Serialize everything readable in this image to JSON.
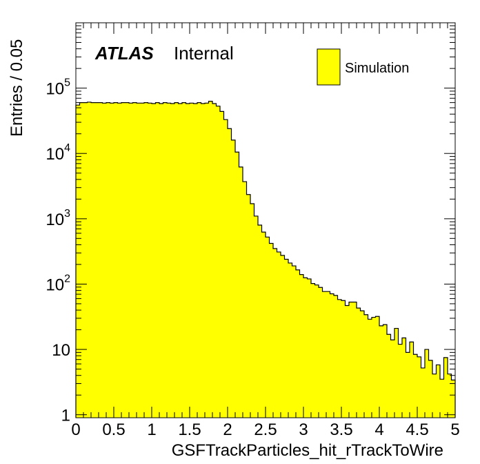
{
  "chart_data": {
    "type": "histogram",
    "title": "",
    "xlabel": "GSFTrackParticles_hit_rTrackToWire",
    "ylabel": "Entries / 0.05",
    "xlim": [
      0,
      5
    ],
    "ylim": [
      0.9,
      1000000
    ],
    "yscale": "log",
    "bin_width": 0.05,
    "fill_color": "#ffff00",
    "line_color": "#000000",
    "x_ticks": [
      "0",
      "0.5",
      "1",
      "1.5",
      "2",
      "2.5",
      "3",
      "3.5",
      "4",
      "4.5",
      "5"
    ],
    "y_ticks": [
      {
        "value": 1,
        "base": "1",
        "exp": ""
      },
      {
        "value": 10,
        "base": "10",
        "exp": ""
      },
      {
        "value": 100,
        "base": "10",
        "exp": "2"
      },
      {
        "value": 1000,
        "base": "10",
        "exp": "3"
      },
      {
        "value": 10000,
        "base": "10",
        "exp": "4"
      },
      {
        "value": 100000,
        "base": "10",
        "exp": "5"
      }
    ],
    "legend": {
      "entries": [
        "Simulation"
      ],
      "position": "top-right"
    },
    "annotations": {
      "experiment": "ATLAS",
      "status": "Internal"
    },
    "series": [
      {
        "values": [
          55000,
          60000,
          60000,
          61000,
          60000,
          60000,
          60000,
          59000,
          60000,
          59000,
          60000,
          59000,
          60000,
          60000,
          59000,
          60000,
          59000,
          59000,
          60000,
          59000,
          58000,
          60000,
          58000,
          60000,
          59000,
          58000,
          60000,
          58000,
          60000,
          58000,
          59000,
          58000,
          60000,
          58000,
          59000,
          63000,
          58000,
          53000,
          44000,
          33000,
          24000,
          16000,
          10500,
          6200,
          3700,
          2350,
          1700,
          1100,
          800,
          625,
          525,
          420,
          350,
          310,
          275,
          240,
          210,
          190,
          165,
          140,
          125,
          120,
          102,
          97,
          89,
          77,
          77,
          71,
          67,
          58,
          56,
          47,
          53,
          53,
          43,
          39,
          34,
          29,
          31,
          32,
          23,
          24,
          17,
          14,
          21,
          12,
          15,
          9,
          13,
          8.4,
          7.7,
          5.2,
          10,
          6.8,
          4.2,
          5.8,
          3.5,
          7.5,
          4.2,
          3.4
        ]
      }
    ]
  }
}
